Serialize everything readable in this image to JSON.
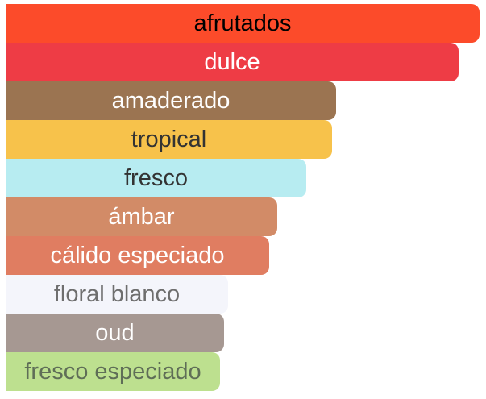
{
  "accords": [
    {
      "label": "afrutados",
      "level": 1.0,
      "color": "#FC4B2A",
      "text_color": "#000000"
    },
    {
      "label": "dulce",
      "level": 0.955,
      "color": "#EE3C45",
      "text_color": "#FFFFFF"
    },
    {
      "label": "amaderado",
      "level": 0.698,
      "color": "#9B7451",
      "text_color": "#FFFFFF"
    },
    {
      "label": "tropical",
      "level": 0.688,
      "color": "#F7C24B",
      "text_color": "#333333"
    },
    {
      "label": "fresco",
      "level": 0.635,
      "color": "#B7ECF1",
      "text_color": "#333333"
    },
    {
      "label": "ámbar",
      "level": 0.573,
      "color": "#D28B67",
      "text_color": "#FFFFFF"
    },
    {
      "label": "cálido especiado",
      "level": 0.556,
      "color": "#E07D61",
      "text_color": "#FFFFFF"
    },
    {
      "label": "floral blanco",
      "level": 0.47,
      "color": "#F4F5FB",
      "text_color": "#6E6E6E"
    },
    {
      "label": "oud",
      "level": 0.461,
      "color": "#A69892",
      "text_color": "#FFFFFF"
    },
    {
      "label": "fresco especiado",
      "level": 0.452,
      "color": "#BDE08F",
      "text_color": "#5F6E57"
    }
  ]
}
